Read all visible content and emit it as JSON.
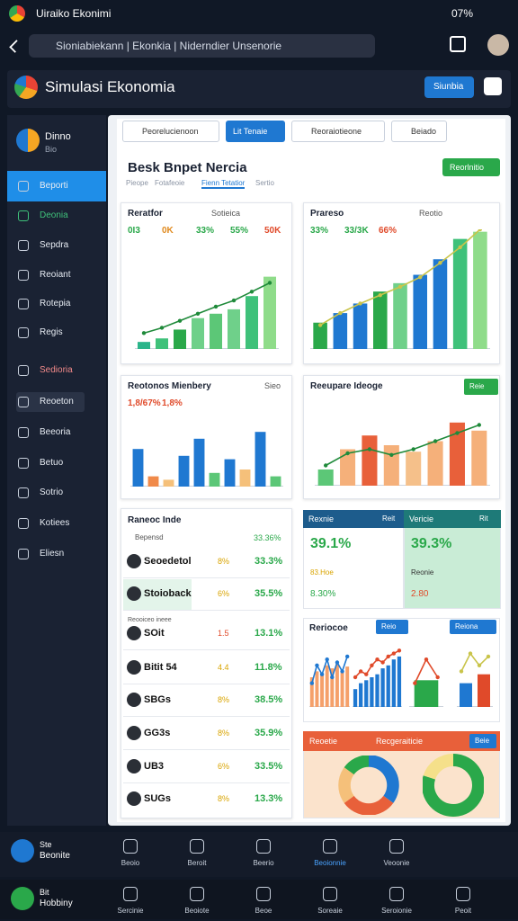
{
  "status_bar": {
    "app": "Uiraiko Ekonimi",
    "battery": "07%"
  },
  "browser": {
    "url": "Sioniabiekann | Ekonkia | Niderndier Unsenorie"
  },
  "header": {
    "title": "Simulasi Ekonomia",
    "button": "Siunbia"
  },
  "sidebar": {
    "profile": {
      "name": "Dinno",
      "subtitle": "Bio"
    },
    "items": [
      "Beporti",
      "Deonia",
      "Sepdra",
      "Reoiant",
      "Rotepia",
      "Regis",
      "Sedioria",
      "Reoeton",
      "Beeoria",
      "Betuo",
      "Sotrio",
      "Kotiees",
      "Eliesn"
    ]
  },
  "filters": [
    "Peorelucienoon",
    "Lit Tenaie",
    "Reoraiotieone",
    "Beiado"
  ],
  "page": {
    "title": "Besk Bnpet Nercia",
    "tabs": [
      "Pieope",
      "Fotafeoie",
      "Fienn Tetatior",
      "Sertio"
    ],
    "button": "Reorlnitio"
  },
  "cards": [
    {
      "title": "Reratfor",
      "subtitle": "Sotieica",
      "stats": [
        {
          "text": "0I3",
          "color": "#2aa84a"
        },
        {
          "text": "0K",
          "color": "#e08a1e"
        },
        {
          "text": "33%",
          "color": "#2aa84a"
        },
        {
          "text": "55%",
          "color": "#2aa84a"
        },
        {
          "text": "50K",
          "color": "#e04a2a"
        }
      ],
      "chart": {
        "type": "bar",
        "values": [
          8,
          12,
          22,
          35,
          40,
          45,
          60,
          82
        ],
        "colors": [
          "#2bb58a",
          "#3fc17a",
          "#2aa84a",
          "#6fd08a",
          "#5cc777",
          "#6fd08a",
          "#3fc17a",
          "#8fdc8a"
        ],
        "line": [
          18,
          24,
          32,
          40,
          48,
          55,
          65,
          75
        ],
        "line_color": "#1f8a3a",
        "ylim": [
          0,
          100
        ]
      }
    },
    {
      "title": "Prareso",
      "subtitle": "Reotio",
      "stats": [
        {
          "text": "33%",
          "color": "#2aa84a"
        },
        {
          "text": "33/3K",
          "color": "#2aa84a"
        },
        {
          "text": "66%",
          "color": "#e04a2a"
        }
      ],
      "chart": {
        "type": "bar",
        "values": [
          22,
          30,
          38,
          48,
          55,
          62,
          75,
          92,
          98
        ],
        "colors": [
          "#2aa84a",
          "#1f78d1",
          "#1f78d1",
          "#2aa84a",
          "#6fd08a",
          "#1f78d1",
          "#1f78d1",
          "#3fc17a",
          "#8fdc8a"
        ],
        "line": [
          20,
          30,
          38,
          45,
          52,
          60,
          72,
          85,
          100
        ],
        "line_color": "#c9c44a",
        "ylim": [
          0,
          100
        ]
      }
    },
    {
      "title": "Reotonos Mienbery",
      "subtitle": "Sieo",
      "stats": [
        {
          "text": "1,8/67%",
          "color": "#e04a2a"
        },
        {
          "text": "1,8%",
          "color": "#e04a2a"
        }
      ],
      "chart": {
        "type": "bar",
        "values": [
          55,
          15,
          10,
          45,
          70,
          20,
          40,
          25,
          80,
          15
        ],
        "colors": [
          "#1f78d1",
          "#f08a4a",
          "#f5c07a",
          "#1f78d1",
          "#1f78d1",
          "#5cc777",
          "#1f78d1",
          "#f5c07a",
          "#1f78d1",
          "#5cc777"
        ],
        "ylim": [
          0,
          100
        ]
      }
    },
    {
      "title": "Reeupare Ideoge",
      "subtitle": "Reie",
      "stats": [],
      "chart": {
        "type": "bar",
        "values": [
          20,
          45,
          62,
          50,
          42,
          55,
          78,
          68
        ],
        "colors": [
          "#5cc777",
          "#f5b07a",
          "#e8603a",
          "#f5b07a",
          "#f5c08a",
          "#f5b07a",
          "#e8603a",
          "#f5b07a"
        ],
        "line": [
          25,
          40,
          45,
          38,
          45,
          55,
          65,
          75
        ],
        "line_color": "#1f8a3a",
        "ylim": [
          0,
          100
        ]
      }
    }
  ],
  "list": {
    "title": "Raneoc Inde",
    "subtitle": "Bepensd",
    "total": "33.36%",
    "section": "Reooiceo ineee",
    "rows": [
      {
        "name": "Seoedetol",
        "pct": "8%",
        "value": "33.3%"
      },
      {
        "name": "Stoioback",
        "pct": "6%",
        "value": "35.5%"
      },
      {
        "name": "SOit",
        "pct": "1.5",
        "value": "13.1%"
      },
      {
        "name": "Bitit 54",
        "pct": "4.4",
        "value": "11.8%"
      },
      {
        "name": "SBGs",
        "pct": "8%",
        "value": "38.5%"
      },
      {
        "name": "GG3s",
        "pct": "8%",
        "value": "35.9%"
      },
      {
        "name": "UB3",
        "pct": "6%",
        "value": "33.5%"
      },
      {
        "name": "SUGs",
        "pct": "8%",
        "value": "13.3%"
      }
    ]
  },
  "stat_panels": [
    {
      "title": "Rexnie",
      "tag": "Reit",
      "value": "39.1%",
      "line1": "83.Hoe",
      "line2": "8.30%"
    },
    {
      "title": "Vericie",
      "tag": "Rit",
      "value": "39.3%",
      "line1": "Reonie",
      "line2": "2.80"
    }
  ],
  "mini": {
    "title": "Reriocoe",
    "tabs": [
      "Reio",
      "Reiona"
    ],
    "charts": [
      {
        "type": "bar",
        "values": [
          50,
          60,
          55,
          70,
          65,
          72,
          60,
          68
        ],
        "colors": [
          "#f5a06a"
        ],
        "line": [
          40,
          70,
          55,
          80,
          50,
          75,
          60,
          85
        ],
        "line_color": "#1f78d1",
        "ylim": [
          0,
          100
        ]
      },
      {
        "type": "bar",
        "values": [
          30,
          40,
          45,
          50,
          55,
          65,
          70,
          80,
          85
        ],
        "colors": [
          "#1f78d1"
        ],
        "line": [
          50,
          60,
          55,
          70,
          80,
          75,
          85,
          90,
          95
        ],
        "line_color": "#e04a2a",
        "ylim": [
          0,
          100
        ]
      },
      {
        "type": "bar",
        "values": [
          45
        ],
        "colors": [
          "#2aa84a"
        ],
        "line": [
          40,
          80,
          50
        ],
        "line_color": "#e04a2a",
        "ylim": [
          0,
          100
        ]
      },
      {
        "type": "bar",
        "values": [
          40,
          55
        ],
        "colors": [
          "#1f78d1",
          "#e04a2a"
        ],
        "line": [
          60,
          90,
          70,
          85
        ],
        "line_color": "#c9c44a",
        "ylim": [
          0,
          100
        ]
      }
    ]
  },
  "pies": {
    "title": "Reoetie",
    "subtitle": "Recgeraiticie",
    "button": "Beie",
    "charts": [
      {
        "type": "donut",
        "values": [
          35,
          30,
          20,
          15
        ],
        "colors": [
          "#1f78d1",
          "#e8603a",
          "#f5c07a",
          "#2aa84a"
        ]
      },
      {
        "type": "donut",
        "values": [
          80,
          20
        ],
        "colors": [
          "#2aa84a",
          "#f5e08a"
        ]
      }
    ]
  },
  "bottom_nav": [
    {
      "profile": "Beonite",
      "badge": "Ste",
      "items": [
        "Beoio",
        "Beroit",
        "Beerio",
        "Beoionnie",
        "Veoonie"
      ]
    },
    {
      "profile": "Hobbiny",
      "badge": "Bit",
      "items": [
        "Sercinie",
        "Beoiote",
        "Beoe",
        "Soreaie",
        "Seroionie",
        "Peoit"
      ]
    }
  ]
}
